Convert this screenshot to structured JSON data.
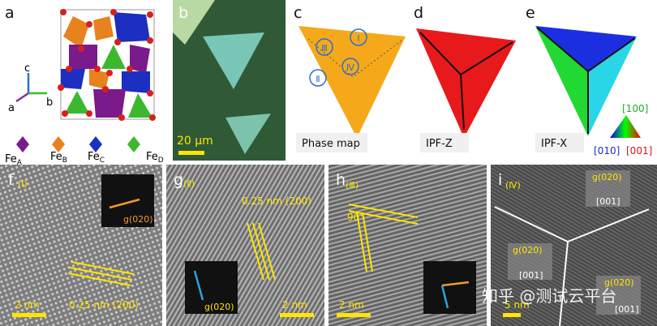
{
  "panel_labels": [
    "a",
    "b",
    "c",
    "d",
    "e",
    "f",
    "g",
    "h",
    "i"
  ],
  "a": {
    "axes": [
      "c",
      "a",
      "b"
    ],
    "legend": [
      {
        "main": "Fe",
        "sub": "A"
      },
      {
        "main": "Fe",
        "sub": "B"
      },
      {
        "main": "Fe",
        "sub": "C"
      },
      {
        "main": "Fe",
        "sub": "D"
      }
    ]
  },
  "b": {
    "scale_bar": "20 μm"
  },
  "c": {
    "regions": [
      "Ⅰ",
      "Ⅱ",
      "Ⅲ",
      "Ⅳ"
    ],
    "caption": "Phase map"
  },
  "d": {
    "caption": "IPF-Z"
  },
  "e": {
    "caption": "IPF-X",
    "key": [
      "[100]",
      "[010]",
      "[001]"
    ]
  },
  "f": {
    "region": "(Ⅰ)",
    "fft": "g(020)",
    "spacing": "0.25 nm (200)",
    "scale_bar": "2 nm"
  },
  "g": {
    "region": "(Ⅱ)",
    "fft": "g(020)",
    "spacing": "0.25 nm (200)",
    "scale_bar": "2 nm"
  },
  "h": {
    "region": "(Ⅲ)",
    "angle": "90°",
    "scale_bar": "2 nm"
  },
  "i": {
    "region": "(Ⅳ)",
    "ffts": [
      {
        "g": "g(020)",
        "zone": "[001]"
      },
      {
        "g": "g(020)",
        "zone": "[001]"
      },
      {
        "g": "g(020)",
        "zone": "[001]"
      }
    ],
    "scale_bar": "5 nm"
  },
  "watermark": "知乎 @测试云平台"
}
